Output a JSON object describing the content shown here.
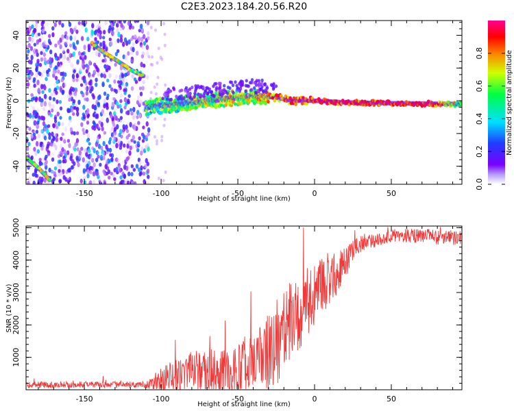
{
  "title": "C2E3.2023.184.20.56.R20",
  "colors": {
    "snr_line": "#f03a3a",
    "axes": "#000000",
    "background": "#ffffff"
  },
  "chart_data": [
    {
      "type": "heatmap",
      "xlabel": "Height of straight line (km)",
      "ylabel": "Frequency (Hz)",
      "xlim": [
        -188,
        96
      ],
      "ylim": [
        -51,
        49
      ],
      "x_ticks": [
        -150,
        -100,
        -50,
        0,
        50
      ],
      "x_tick_labels": [
        "-150",
        "-100",
        "-50",
        "0",
        "50"
      ],
      "y_ticks": [
        -40,
        -20,
        0,
        20,
        40
      ],
      "y_tick_labels": [
        "-40",
        "-20",
        "0",
        "20",
        "40"
      ],
      "colorbar": {
        "label": "Normalized spectral amplitude",
        "range": [
          0,
          1
        ],
        "ticks": [
          0.0,
          0.2,
          0.4,
          0.6,
          0.8
        ],
        "tick_labels": [
          "0.0",
          "0.2",
          "0.4",
          "0.6",
          "0.8"
        ],
        "colormap": [
          "#ffffff",
          "#7a00ff",
          "#1e3cff",
          "#00e0ff",
          "#00ff40",
          "#d0ff00",
          "#ff8000",
          "#ff0000",
          "#ff0090"
        ]
      },
      "features": [
        {
          "kind": "noise",
          "x": [
            -188,
            -108
          ],
          "y": [
            -51,
            49
          ],
          "level": 0.25
        },
        {
          "kind": "branch",
          "points": [
            [
              -145,
              35
            ],
            [
              -138,
              30
            ],
            [
              -128,
              24
            ],
            [
              -118,
              18
            ],
            [
              -111,
              15
            ]
          ],
          "level": 0.55
        },
        {
          "kind": "branch",
          "points": [
            [
              -188,
              -35
            ],
            [
              -180,
              -41
            ],
            [
              -172,
              -49
            ]
          ],
          "level": 0.55
        },
        {
          "kind": "band",
          "points": [
            [
              -110,
              -4
            ],
            [
              -90,
              -2
            ],
            [
              -60,
              1
            ],
            [
              -40,
              3
            ],
            [
              -25,
              2
            ],
            [
              -15,
              0
            ],
            [
              0,
              0
            ],
            [
              20,
              -1
            ],
            [
              50,
              -1.5
            ],
            [
              80,
              -1.8
            ],
            [
              96,
              -2
            ]
          ],
          "levels": [
            [
              -110,
              0.45
            ],
            [
              -40,
              0.6
            ],
            [
              -25,
              0.75
            ],
            [
              0,
              0.85
            ],
            [
              40,
              0.85
            ],
            [
              75,
              0.9
            ],
            [
              96,
              0.5
            ]
          ]
        }
      ]
    },
    {
      "type": "line",
      "xlabel": "Height of straight line (km)",
      "ylabel": "SNR (10 * v/v)",
      "xlim": [
        -188,
        96
      ],
      "ylim": [
        0,
        5050
      ],
      "x_ticks": [
        -150,
        -100,
        -50,
        0,
        50
      ],
      "x_tick_labels": [
        "-150",
        "-100",
        "-50",
        "0",
        "50"
      ],
      "y_ticks": [
        1000,
        2000,
        3000,
        4000,
        5000
      ],
      "y_tick_labels": [
        "1000",
        "2000",
        "3000",
        "4000",
        "5000"
      ],
      "trend": [
        [
          -188,
          150
        ],
        [
          -110,
          160
        ],
        [
          -100,
          300
        ],
        [
          -80,
          600
        ],
        [
          -60,
          500
        ],
        [
          -50,
          600
        ],
        [
          -40,
          1000
        ],
        [
          -30,
          1100
        ],
        [
          -20,
          1900
        ],
        [
          -10,
          2400
        ],
        [
          0,
          3000
        ],
        [
          10,
          3300
        ],
        [
          20,
          3900
        ],
        [
          25,
          4300
        ],
        [
          30,
          4500
        ],
        [
          40,
          4600
        ],
        [
          50,
          4750
        ],
        [
          70,
          4750
        ],
        [
          96,
          4650
        ]
      ],
      "noise_amplitude": [
        [
          -188,
          100
        ],
        [
          -110,
          100
        ],
        [
          -100,
          400
        ],
        [
          -60,
          800
        ],
        [
          -40,
          900
        ],
        [
          -25,
          1400
        ],
        [
          0,
          1000
        ],
        [
          15,
          700
        ],
        [
          25,
          300
        ],
        [
          40,
          200
        ],
        [
          96,
          250
        ]
      ]
    }
  ]
}
